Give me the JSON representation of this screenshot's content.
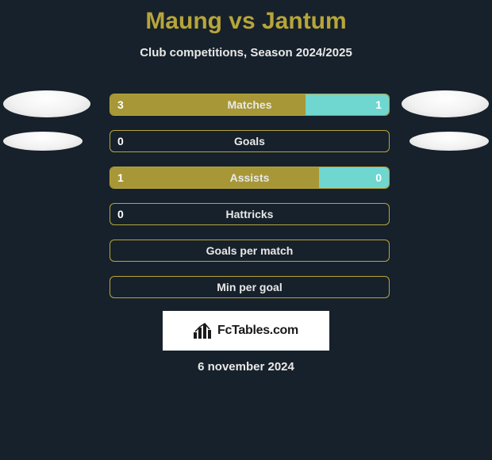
{
  "title": "Maung vs Jantum",
  "subtitle": "Club competitions, Season 2024/2025",
  "date_text": "6 november 2024",
  "brand": "FcTables.com",
  "colors": {
    "background": "#17212b",
    "accent": "#b7a53a",
    "bar_fill_left": "#a79736",
    "bar_fill_right": "#6fd6d0",
    "bar_border": "#b7a53a",
    "text": "#e8e8e8"
  },
  "stats": [
    {
      "label": "Matches",
      "left_val": "3",
      "right_val": "1",
      "left_pct": 70,
      "right_pct": 30,
      "show_fill": true,
      "photo": "big"
    },
    {
      "label": "Goals",
      "left_val": "0",
      "right_val": "",
      "left_pct": 0,
      "right_pct": 0,
      "show_fill": false,
      "photo": "small"
    },
    {
      "label": "Assists",
      "left_val": "1",
      "right_val": "0",
      "left_pct": 75,
      "right_pct": 25,
      "show_fill": true,
      "photo": ""
    },
    {
      "label": "Hattricks",
      "left_val": "0",
      "right_val": "",
      "left_pct": 0,
      "right_pct": 0,
      "show_fill": false,
      "photo": ""
    },
    {
      "label": "Goals per match",
      "left_val": "",
      "right_val": "",
      "left_pct": 0,
      "right_pct": 0,
      "show_fill": false,
      "photo": ""
    },
    {
      "label": "Min per goal",
      "left_val": "",
      "right_val": "",
      "left_pct": 0,
      "right_pct": 0,
      "show_fill": false,
      "photo": ""
    }
  ]
}
